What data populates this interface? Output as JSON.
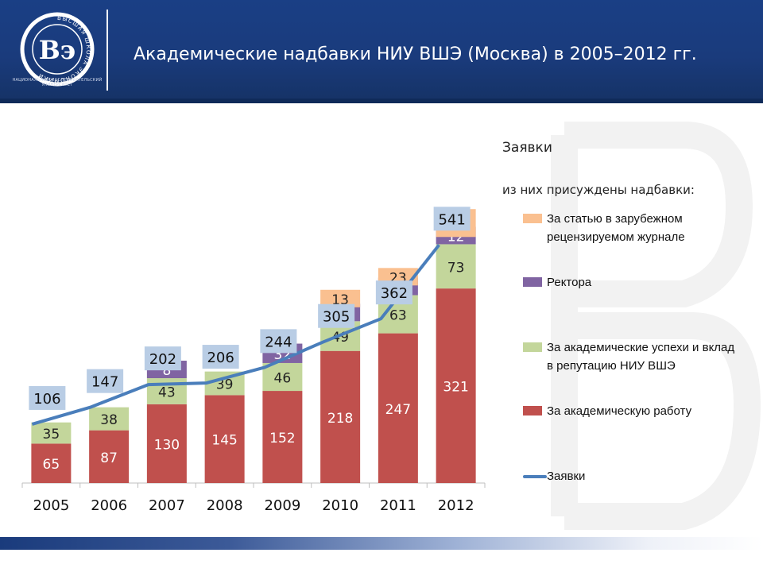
{
  "slide": {
    "title": "Академические надбавки НИУ ВШЭ (Москва) в 2005–2012 гг.",
    "logo_text": "НАЦИОНАЛЬНЫЙ ИССЛЕДОВАТЕЛЬСКИЙ УНИВЕРСИТЕТ",
    "logo_ring_text": "ВЫСШАЯ ШКОЛА ЭКОНОМИКИ",
    "logo_monogram": "Вэ"
  },
  "legend": {
    "heading_line": "Заявки",
    "heading_awards": "из них присуждены надбавки:",
    "items": [
      {
        "key": "foreign",
        "label": "За статью в зарубежном рецензируемом журнале"
      },
      {
        "key": "rector",
        "label": "Ректора"
      },
      {
        "key": "success",
        "label": "За академические успехи и вклад в репутацию НИУ ВШЭ"
      },
      {
        "key": "work",
        "label": "За академическую работу"
      },
      {
        "key": "applications",
        "label": "Заявки"
      }
    ]
  },
  "colors": {
    "header": "#1a3b7c",
    "work": "#c0504d",
    "success": "#c3d69b",
    "rector": "#8064a2",
    "foreign": "#fac090",
    "line": "#4a7ebb",
    "line_label_bg": "#b9cde5"
  },
  "chart_data": {
    "type": "bar",
    "stacked": true,
    "categories": [
      "2005",
      "2006",
      "2007",
      "2008",
      "2009",
      "2010",
      "2011",
      "2012"
    ],
    "series": [
      {
        "name": "За академическую работу",
        "key": "work",
        "values": [
          65,
          87,
          130,
          145,
          152,
          218,
          247,
          321
        ]
      },
      {
        "name": "За академические успехи и вклад в репутацию НИУ ВШЭ",
        "key": "success",
        "values": [
          35,
          38,
          43,
          39,
          46,
          49,
          63,
          73
        ]
      },
      {
        "name": "Ректора",
        "key": "rector",
        "values": [
          null,
          null,
          8,
          null,
          32,
          23,
          16,
          12
        ]
      },
      {
        "name": "За статью в зарубежном рецензируемом журнале",
        "key": "foreign",
        "values": [
          null,
          null,
          null,
          null,
          null,
          13,
          23,
          46
        ]
      }
    ],
    "line": {
      "name": "Заявки",
      "type": "line",
      "values": [
        106,
        147,
        202,
        206,
        244,
        305,
        362,
        541
      ]
    },
    "ylim": [
      0,
      600
    ],
    "grid": false,
    "legend_position": "right"
  }
}
